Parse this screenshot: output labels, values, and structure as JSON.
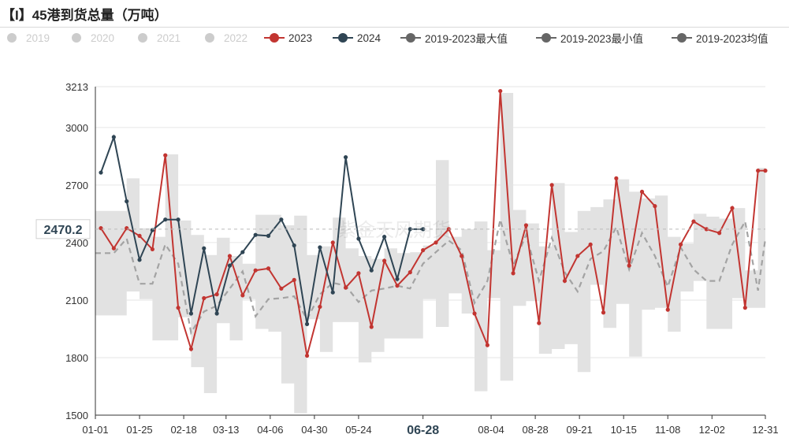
{
  "title": "【I】45港到货总量（万吨）",
  "watermark": "紫金天风期货",
  "legend": [
    {
      "label": "2019",
      "color": "#cccccc",
      "type": "dot",
      "active": false
    },
    {
      "label": "2020",
      "color": "#cccccc",
      "type": "dot",
      "active": false
    },
    {
      "label": "2021",
      "color": "#cccccc",
      "type": "dot",
      "active": false
    },
    {
      "label": "2022",
      "color": "#cccccc",
      "type": "dot",
      "active": false
    },
    {
      "label": "2023",
      "color": "#c23531",
      "type": "line-dot",
      "active": true
    },
    {
      "label": "2024",
      "color": "#2f4554",
      "type": "line-dot",
      "active": true
    },
    {
      "label": "2019-2023最大值",
      "color": "#666666",
      "type": "line-dot",
      "active": true
    },
    {
      "label": "2019-2023最小值",
      "color": "#666666",
      "type": "line-dot",
      "active": true
    },
    {
      "label": "2019-2023均值",
      "color": "#666666",
      "type": "line-dot",
      "active": true
    }
  ],
  "tooltip": {
    "y_value": "2470.2",
    "x_value": "06-28"
  },
  "chart_data": {
    "type": "line",
    "title": "【I】45港到货总量（万吨）",
    "y_range": [
      1500,
      3213
    ],
    "y_ticks": [
      "1500",
      "1800",
      "2100",
      "2400",
      "2700",
      "3000",
      "3213"
    ],
    "x_ticks": [
      "01-01",
      "01-25",
      "02-18",
      "03-13",
      "04-06",
      "04-30",
      "05-24",
      "06-28",
      "08-04",
      "08-28",
      "09-21",
      "10-15",
      "11-08",
      "12-02",
      "12-31"
    ],
    "x_day_range": [
      1,
      365
    ],
    "colors": {
      "s2023": "#c23531",
      "s2024": "#2f4554",
      "band": "#e2e2e2",
      "avg": "#a3a3a3"
    },
    "series": [
      {
        "name": "2023",
        "x": [
          "01-04",
          "01-11",
          "01-18",
          "01-25",
          "02-01",
          "02-08",
          "02-15",
          "02-22",
          "03-01",
          "03-08",
          "03-15",
          "03-22",
          "03-29",
          "04-05",
          "04-12",
          "04-19",
          "04-26",
          "05-03",
          "05-10",
          "05-17",
          "05-24",
          "05-31",
          "06-07",
          "06-14",
          "06-21",
          "06-28",
          "07-05",
          "07-12",
          "07-19",
          "07-26",
          "08-02",
          "08-09",
          "08-16",
          "08-23",
          "08-30",
          "09-06",
          "09-13",
          "09-20",
          "09-27",
          "10-04",
          "10-11",
          "10-18",
          "10-25",
          "11-01",
          "11-08",
          "11-15",
          "11-22",
          "11-29",
          "12-06",
          "12-13",
          "12-20",
          "12-27",
          "12-31"
        ],
        "values": [
          2475,
          2370,
          2475,
          2435,
          2365,
          2855,
          2060,
          1845,
          2110,
          2130,
          2330,
          2125,
          2255,
          2265,
          2160,
          2205,
          1810,
          2065,
          2400,
          2165,
          2240,
          1960,
          2305,
          2175,
          2245,
          2360,
          2400,
          2470,
          2330,
          2030,
          1865,
          3190,
          2240,
          2490,
          1980,
          2700,
          2200,
          2330,
          2390,
          2035,
          2735,
          2280,
          2665,
          2590,
          2050,
          2390,
          2510,
          2470,
          2450,
          2580,
          2060,
          2775,
          2775
        ]
      },
      {
        "name": "2024",
        "x": [
          "01-04",
          "01-11",
          "01-18",
          "01-25",
          "02-01",
          "02-08",
          "02-15",
          "02-22",
          "03-01",
          "03-08",
          "03-15",
          "03-22",
          "03-29",
          "04-05",
          "04-12",
          "04-19",
          "04-26",
          "05-03",
          "05-10",
          "05-17",
          "05-24",
          "05-31",
          "06-07",
          "06-14",
          "06-21",
          "06-28"
        ],
        "values": [
          2765,
          2950,
          2615,
          2310,
          2465,
          2520,
          2520,
          2030,
          2370,
          2030,
          2280,
          2350,
          2440,
          2435,
          2520,
          2385,
          1975,
          2375,
          2140,
          2845,
          2420,
          2255,
          2430,
          2210,
          2470,
          2470
        ]
      },
      {
        "name": "2019-2023最大值",
        "x": [
          "01-01",
          "01-11",
          "01-18",
          "01-25",
          "02-01",
          "02-08",
          "02-15",
          "02-22",
          "03-01",
          "03-08",
          "03-15",
          "03-22",
          "03-29",
          "04-05",
          "04-12",
          "04-19",
          "04-26",
          "05-03",
          "05-10",
          "05-17",
          "05-24",
          "05-31",
          "06-07",
          "06-14",
          "06-21",
          "06-28",
          "07-05",
          "07-12",
          "07-19",
          "07-26",
          "08-02",
          "08-09",
          "08-16",
          "08-23",
          "08-30",
          "09-06",
          "09-13",
          "09-20",
          "09-27",
          "10-04",
          "10-11",
          "10-18",
          "10-25",
          "11-01",
          "11-08",
          "11-15",
          "11-22",
          "11-29",
          "12-06",
          "12-13",
          "12-20",
          "12-27",
          "12-31"
        ],
        "values": [
          2565,
          2565,
          2735,
          2475,
          2430,
          2860,
          2515,
          2440,
          2335,
          2425,
          2330,
          2290,
          2545,
          2545,
          2490,
          2540,
          2335,
          2380,
          2530,
          2370,
          2330,
          2315,
          2370,
          2345,
          2350,
          2385,
          2830,
          2430,
          2470,
          2510,
          2360,
          3180,
          2570,
          2500,
          2380,
          2710,
          2455,
          2565,
          2585,
          2625,
          2730,
          2665,
          2630,
          2645,
          2430,
          2395,
          2550,
          2535,
          2525,
          2580,
          2255,
          2790,
          2790
        ]
      },
      {
        "name": "2019-2023最小值",
        "x": [
          "01-01",
          "01-11",
          "01-18",
          "01-25",
          "02-01",
          "02-08",
          "02-15",
          "02-22",
          "03-01",
          "03-08",
          "03-15",
          "03-22",
          "03-29",
          "04-05",
          "04-12",
          "04-19",
          "04-26",
          "05-03",
          "05-10",
          "05-17",
          "05-24",
          "05-31",
          "06-07",
          "06-14",
          "06-21",
          "06-28",
          "07-05",
          "07-12",
          "07-19",
          "07-26",
          "08-02",
          "08-09",
          "08-16",
          "08-23",
          "08-30",
          "09-06",
          "09-13",
          "09-20",
          "09-27",
          "10-04",
          "10-11",
          "10-18",
          "10-25",
          "11-01",
          "11-08",
          "11-15",
          "11-22",
          "11-29",
          "12-06",
          "12-13",
          "12-20",
          "12-27",
          "12-31"
        ],
        "values": [
          2020,
          2020,
          2145,
          2105,
          1890,
          1890,
          2010,
          1750,
          1615,
          1980,
          1890,
          2105,
          1950,
          1935,
          1665,
          1510,
          2000,
          1830,
          1985,
          1985,
          1775,
          1830,
          1900,
          1900,
          1900,
          2105,
          1960,
          2135,
          2030,
          1625,
          2110,
          1680,
          2070,
          2095,
          1820,
          1845,
          1870,
          1725,
          2180,
          1955,
          2080,
          1805,
          2050,
          2060,
          1935,
          2145,
          2200,
          1950,
          1950,
          2110,
          2060,
          2060,
          2060
        ]
      },
      {
        "name": "2019-2023均值",
        "x": [
          "01-01",
          "01-11",
          "01-18",
          "01-25",
          "02-01",
          "02-08",
          "02-15",
          "02-22",
          "03-01",
          "03-08",
          "03-15",
          "03-22",
          "03-29",
          "04-05",
          "04-12",
          "04-19",
          "04-26",
          "05-03",
          "05-10",
          "05-17",
          "05-24",
          "05-31",
          "06-07",
          "06-14",
          "06-21",
          "06-28",
          "07-05",
          "07-12",
          "07-19",
          "07-26",
          "08-02",
          "08-09",
          "08-16",
          "08-23",
          "08-30",
          "09-06",
          "09-13",
          "09-20",
          "09-27",
          "10-04",
          "10-11",
          "10-18",
          "10-25",
          "11-01",
          "11-08",
          "11-15",
          "11-22",
          "11-29",
          "12-06",
          "12-13",
          "12-20",
          "12-27",
          "12-31"
        ],
        "values": [
          2345,
          2345,
          2420,
          2185,
          2185,
          2390,
          2290,
          1930,
          2040,
          2070,
          2160,
          2250,
          2015,
          2105,
          2110,
          2120,
          2000,
          2130,
          2190,
          2175,
          2090,
          2150,
          2160,
          2175,
          2160,
          2290,
          2350,
          2410,
          2360,
          2085,
          2200,
          2520,
          2280,
          2440,
          2200,
          2425,
          2245,
          2145,
          2315,
          2355,
          2480,
          2260,
          2450,
          2330,
          2170,
          2375,
          2260,
          2200,
          2200,
          2390,
          2510,
          2150,
          2420
        ]
      }
    ]
  }
}
